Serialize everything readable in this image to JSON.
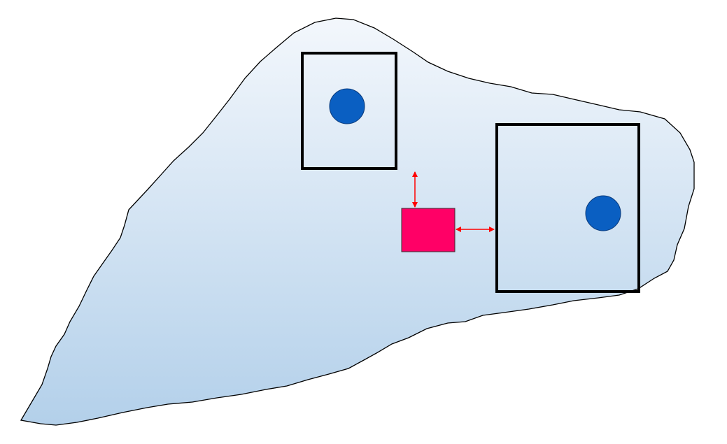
{
  "diagram": {
    "colors": {
      "region_fill_top": "#f3f7fc",
      "region_fill_bottom": "#b3d0ea",
      "region_stroke": "#000000",
      "box_stroke": "#000000",
      "circle_fill": "#0a5fc2",
      "circle_stroke": "#0a3a7a",
      "marker_fill": "#ff0066",
      "marker_stroke": "#333333",
      "arrow_color": "#ff0000"
    },
    "elements": {
      "region": "irregular-region",
      "box_a": "rectangle",
      "box_b": "rectangle",
      "circle_a": "circle",
      "circle_b": "circle",
      "marker": "square",
      "arrow_vertical": "double-headed-arrow",
      "arrow_horizontal": "double-headed-arrow"
    }
  }
}
